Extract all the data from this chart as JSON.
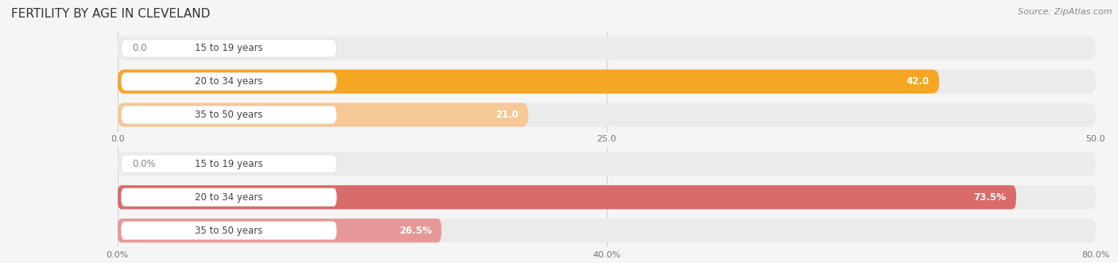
{
  "title": "FERTILITY BY AGE IN CLEVELAND",
  "source": "Source: ZipAtlas.com",
  "top_section": {
    "categories": [
      "15 to 19 years",
      "20 to 34 years",
      "35 to 50 years"
    ],
    "values": [
      0.0,
      42.0,
      21.0
    ],
    "xlim": [
      0,
      50
    ],
    "xticks": [
      0.0,
      25.0,
      50.0
    ],
    "xtick_labels": [
      "0.0",
      "25.0",
      "50.0"
    ],
    "bar_color_max": "#F5A623",
    "bar_color_mid": "#F5C896",
    "bar_color_zero": "#F5C896",
    "label_inside_color": "#ffffff",
    "label_outside_color": "#888888"
  },
  "bottom_section": {
    "categories": [
      "15 to 19 years",
      "20 to 34 years",
      "35 to 50 years"
    ],
    "values": [
      0.0,
      73.5,
      26.5
    ],
    "xlim": [
      0,
      80
    ],
    "xticks": [
      0.0,
      40.0,
      80.0
    ],
    "xtick_labels": [
      "0.0%",
      "40.0%",
      "80.0%"
    ],
    "bar_color_max": "#D96B6B",
    "bar_color_mid": "#E89898",
    "bar_color_zero": "#E89898",
    "label_inside_color": "#ffffff",
    "label_outside_color": "#888888"
  },
  "fig_bg_color": "#f5f5f5",
  "bar_bg_color": "#ebebeb",
  "bar_row_bg": "#f5f5f5",
  "pill_label_bg": "#ffffff",
  "pill_label_color": "#444444",
  "bar_height": 0.72,
  "title_fontsize": 11,
  "source_fontsize": 8,
  "value_fontsize": 8.5,
  "tick_fontsize": 8,
  "category_fontsize": 8.5
}
